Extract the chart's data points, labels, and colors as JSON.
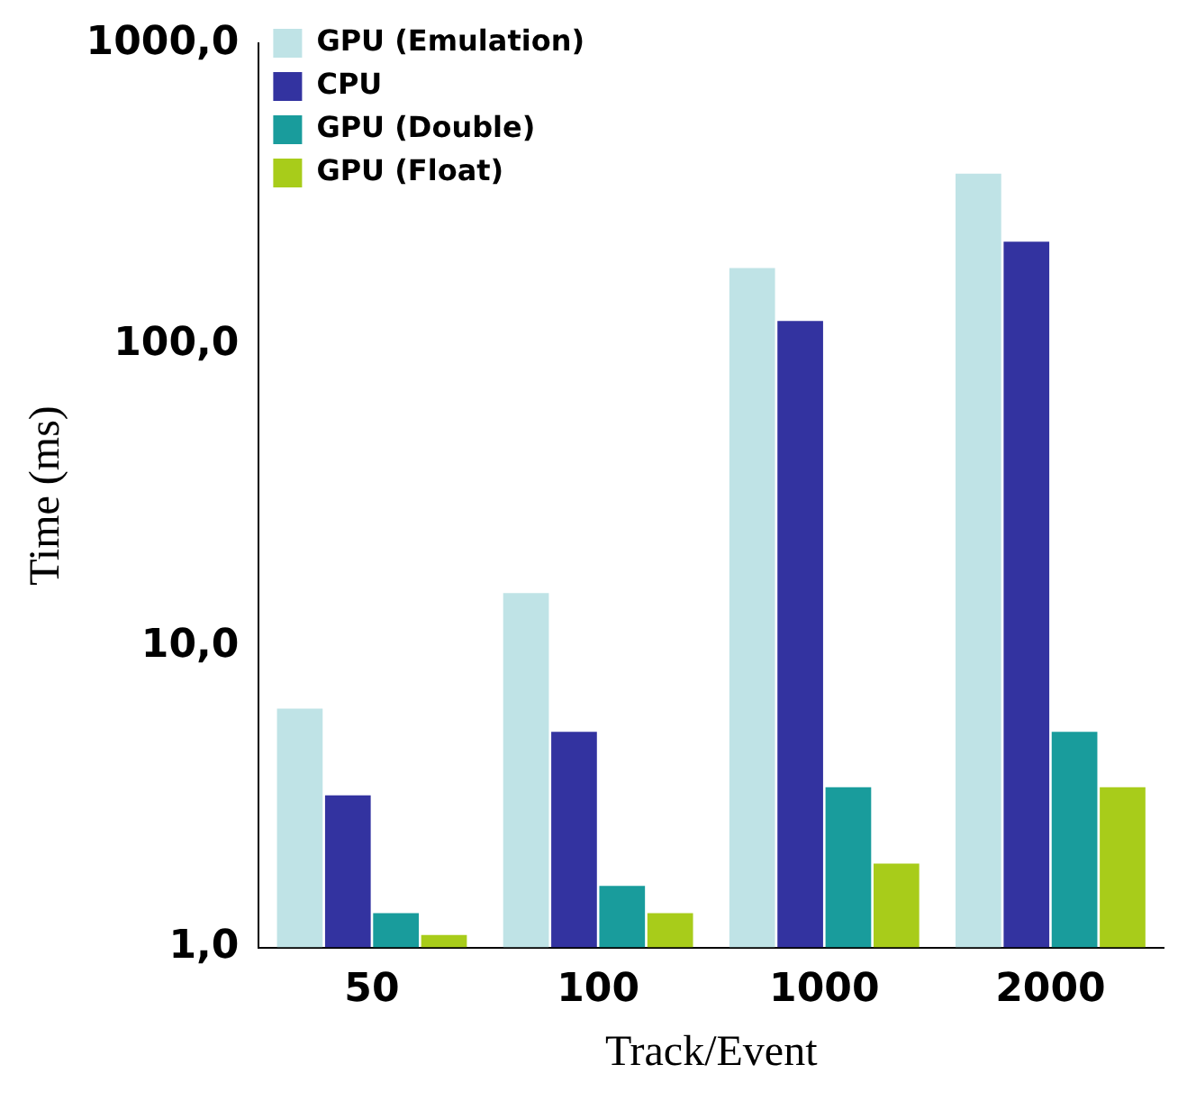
{
  "chart_data": {
    "type": "bar",
    "xlabel": "Track/Event",
    "ylabel": "Time (ms)",
    "categories": [
      "50",
      "100",
      "1000",
      "2000"
    ],
    "series": [
      {
        "name": "GPU (Emulation)",
        "color": "#bfe3e6",
        "values": [
          6.2,
          15,
          180,
          370
        ]
      },
      {
        "name": "CPU",
        "color": "#3333a0",
        "values": [
          3.2,
          5.2,
          120,
          220
        ]
      },
      {
        "name": "GPU (Double)",
        "color": "#199c9c",
        "values": [
          1.3,
          1.6,
          3.4,
          5.2
        ]
      },
      {
        "name": "GPU (Float)",
        "color": "#a8cc1a",
        "values": [
          1.1,
          1.3,
          1.9,
          3.4
        ]
      }
    ],
    "log": "y",
    "ylim": [
      1,
      1000
    ],
    "yticks": [
      {
        "value": 1,
        "label": "1,0"
      },
      {
        "value": 10,
        "label": "10,0"
      },
      {
        "value": 100,
        "label": "100,0"
      },
      {
        "value": 1000,
        "label": "1000,0"
      }
    ],
    "legend": "top left",
    "grid": false
  }
}
